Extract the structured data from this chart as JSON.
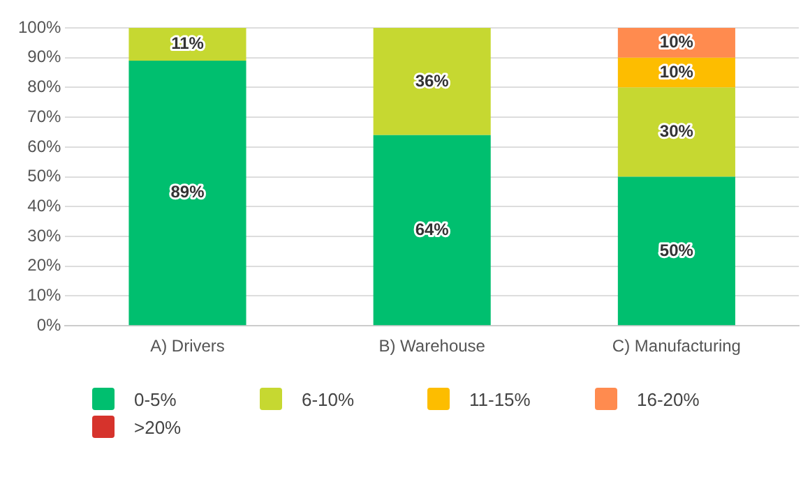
{
  "chart_data": {
    "type": "bar",
    "stacked": true,
    "categories": [
      "A) Drivers",
      "B) Warehouse",
      "C) Manufacturing"
    ],
    "series": [
      {
        "name": "0-5%",
        "color": "#00bf6f",
        "values": [
          89,
          64,
          50
        ],
        "value_labels": [
          "89%",
          "64%",
          "50%"
        ]
      },
      {
        "name": "6-10%",
        "color": "#c6d831",
        "values": [
          11,
          36,
          30
        ],
        "value_labels": [
          "11%",
          "36%",
          "30%"
        ]
      },
      {
        "name": "11-15%",
        "color": "#fdbd00",
        "values": [
          0,
          0,
          10
        ],
        "value_labels": [
          null,
          null,
          "10%"
        ]
      },
      {
        "name": "16-20%",
        "color": "#ff8b4f",
        "values": [
          0,
          0,
          10
        ],
        "value_labels": [
          null,
          null,
          "10%"
        ]
      },
      {
        "name": ">20%",
        "color": "#d6332c",
        "values": [
          0,
          0,
          0
        ],
        "value_labels": [
          null,
          null,
          null
        ]
      }
    ],
    "ylim": [
      0,
      100
    ],
    "yticks": [
      {
        "value": 0,
        "label": "0%"
      },
      {
        "value": 10,
        "label": "10%"
      },
      {
        "value": 20,
        "label": "20%"
      },
      {
        "value": 30,
        "label": "30%"
      },
      {
        "value": 40,
        "label": "40%"
      },
      {
        "value": 50,
        "label": "50%"
      },
      {
        "value": 60,
        "label": "60%"
      },
      {
        "value": 70,
        "label": "70%"
      },
      {
        "value": 80,
        "label": "80%"
      },
      {
        "value": 90,
        "label": "90%"
      },
      {
        "value": 100,
        "label": "100%"
      }
    ],
    "grid": "y",
    "legend": "bottom"
  }
}
